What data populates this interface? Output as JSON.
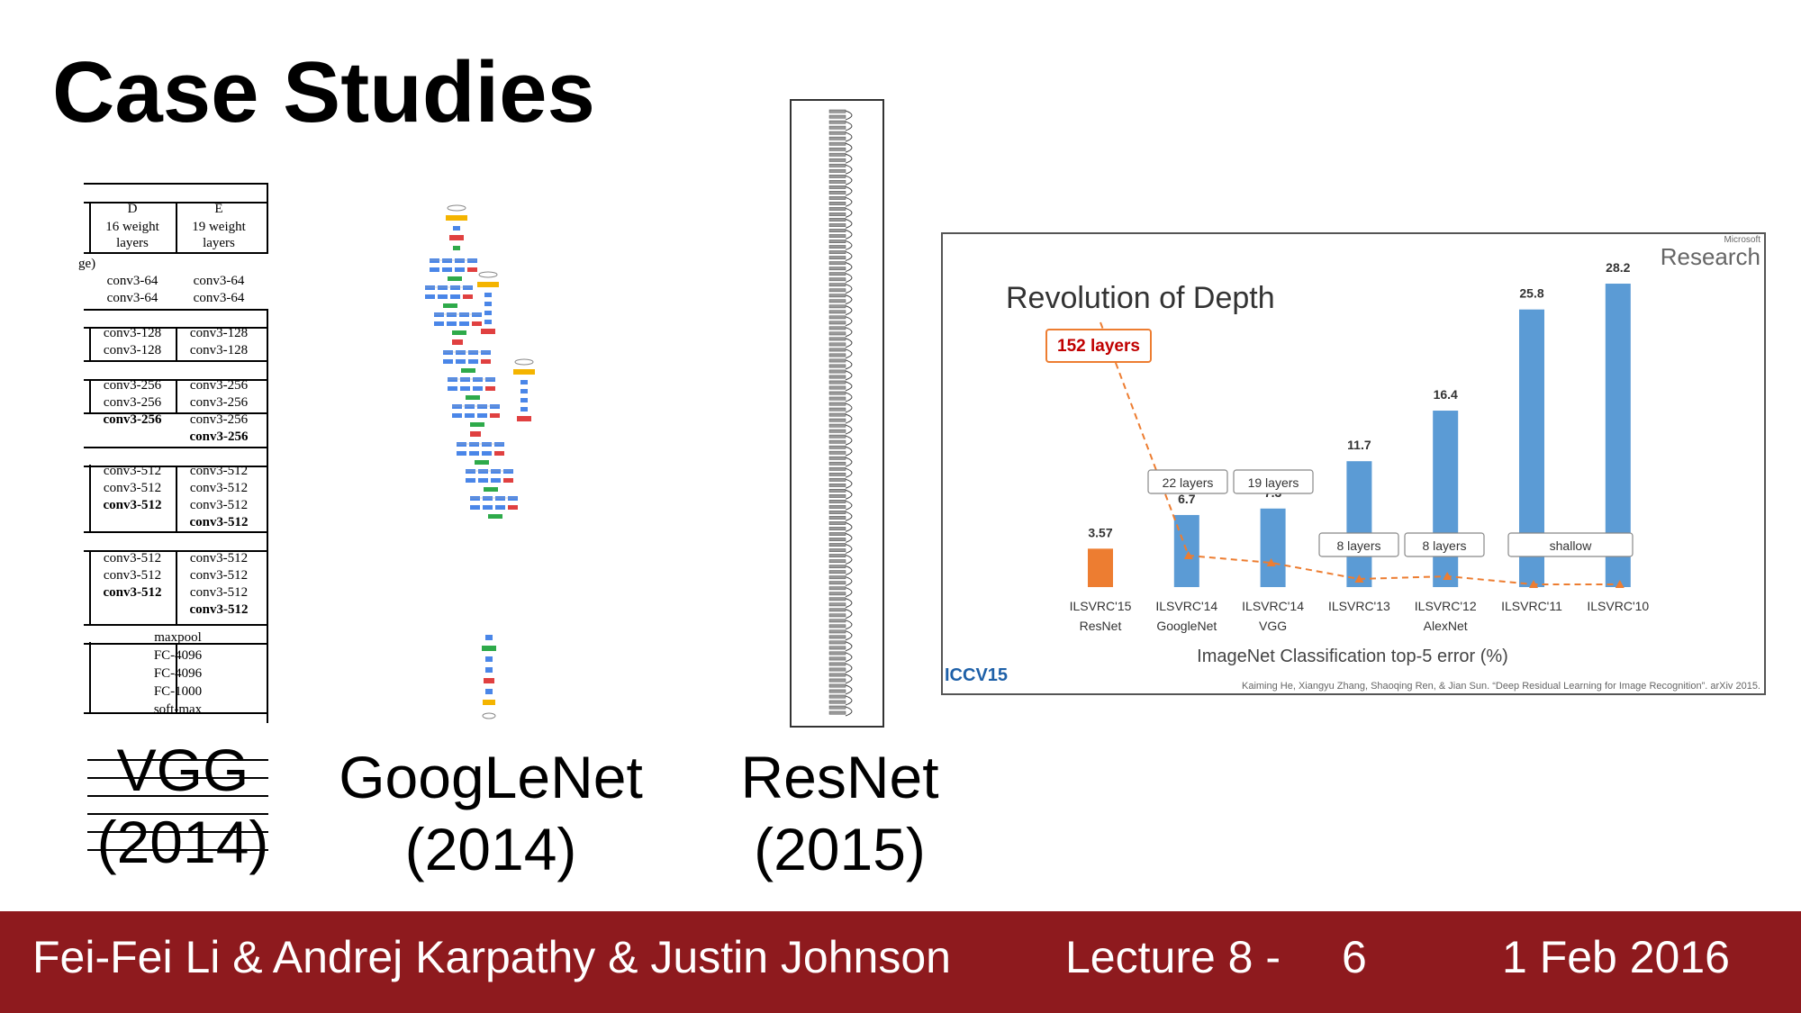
{
  "slide": {
    "title": "Case Studies"
  },
  "captions": {
    "vgg": {
      "name": "VGG",
      "year": "(2014)"
    },
    "googlenet": {
      "name": "GoogLeNet",
      "year": "(2014)"
    },
    "resnet": {
      "name": "ResNet",
      "year": "(2015)"
    }
  },
  "footer": {
    "authors": "Fei-Fei Li & Andrej Karpathy & Justin Johnson",
    "lecture": "Lecture 8 -",
    "page": "6",
    "date": "1 Feb 2016"
  },
  "vgg_table": {
    "col_d_header": "D",
    "col_e_header": "E",
    "col_d_sub1": "16 weight",
    "col_d_sub2": "layers",
    "col_e_sub1": "19 weight",
    "col_e_sub2": "layers",
    "side_fragment": "ge)",
    "block1_d": [
      "conv3-64",
      "conv3-64"
    ],
    "block1_e": [
      "conv3-64",
      "conv3-64"
    ],
    "block2_d": [
      "conv3-128",
      "conv3-128"
    ],
    "block2_e": [
      "conv3-128",
      "conv3-128"
    ],
    "block3_d": [
      "conv3-256",
      "conv3-256",
      "conv3-256"
    ],
    "block3_e": [
      "conv3-256",
      "conv3-256",
      "conv3-256",
      "conv3-256"
    ],
    "block4_d": [
      "conv3-512",
      "conv3-512",
      "conv3-512"
    ],
    "block4_e": [
      "conv3-512",
      "conv3-512",
      "conv3-512",
      "conv3-512"
    ],
    "block5_d": [
      "conv3-512",
      "conv3-512",
      "conv3-512"
    ],
    "block5_e": [
      "conv3-512",
      "conv3-512",
      "conv3-512",
      "conv3-512"
    ],
    "tail": [
      "maxpool",
      "FC-4096",
      "FC-4096",
      "FC-1000",
      "soft-max"
    ]
  },
  "chart_data": {
    "type": "bar",
    "title": "Revolution of Depth",
    "xlabel": "ImageNet Classification top-5 error (%)",
    "categories": [
      "ILSVRC'15",
      "ILSVRC'14",
      "ILSVRC'14",
      "ILSVRC'13",
      "ILSVRC'12",
      "ILSVRC'11",
      "ILSVRC'10"
    ],
    "sublabels": [
      "ResNet",
      "GoogleNet",
      "VGG",
      "",
      "AlexNet",
      "",
      ""
    ],
    "values": [
      3.57,
      6.7,
      7.3,
      11.7,
      16.4,
      25.8,
      28.2
    ],
    "value_labels": [
      "3.57",
      "6.7",
      "7.3",
      "11.7",
      "16.4",
      "25.8",
      "28.2"
    ],
    "bar_colors": [
      "#ed7d31",
      "#5b9bd5",
      "#5b9bd5",
      "#5b9bd5",
      "#5b9bd5",
      "#5b9bd5",
      "#5b9bd5"
    ],
    "depth_labels": {
      "resnet": "152 layers",
      "googlenet": "22 layers",
      "vgg": "19 layers",
      "ilsvrc13": "8 layers",
      "alexnet": "8 layers",
      "shallow": "shallow"
    },
    "ylim": [
      0,
      30
    ],
    "grid": false,
    "logo_text": "Research",
    "logo_small": "Microsoft",
    "conference": "ICCV15",
    "citation": "Kaiming He, Xiangyu Zhang, Shaoqing Ren, & Jian Sun. “Deep Residual Learning for Image Recognition”. arXiv 2015."
  }
}
